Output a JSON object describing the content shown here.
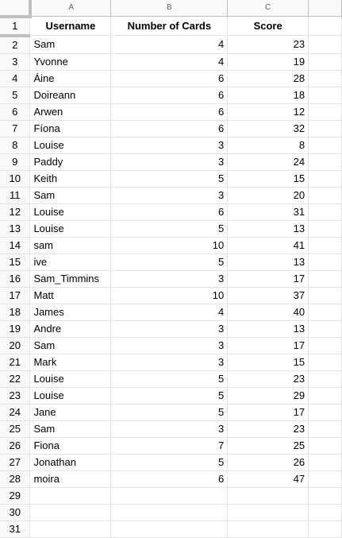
{
  "columns": [
    "A",
    "B",
    "C",
    ""
  ],
  "headers": [
    "Username",
    "Number of Cards",
    "Score"
  ],
  "rows": [
    [
      "Sam",
      "4",
      "23"
    ],
    [
      "Yvonne",
      "4",
      "19"
    ],
    [
      "Áine",
      "6",
      "28"
    ],
    [
      "Doireann",
      "6",
      "18"
    ],
    [
      "Arwen",
      "6",
      "12"
    ],
    [
      "Fíona",
      "6",
      "32"
    ],
    [
      "Louise",
      "3",
      "8"
    ],
    [
      "Paddy",
      "3",
      "24"
    ],
    [
      "Keith",
      "5",
      "15"
    ],
    [
      "Sam",
      "3",
      "20"
    ],
    [
      "Louise",
      "6",
      "31"
    ],
    [
      "Louise",
      "5",
      "13"
    ],
    [
      "sam",
      "10",
      "41"
    ],
    [
      "ive",
      "5",
      "13"
    ],
    [
      "Sam_Timmins",
      "3",
      "17"
    ],
    [
      "Matt",
      "10",
      "37"
    ],
    [
      "James",
      "4",
      "40"
    ],
    [
      "Andre",
      "3",
      "13"
    ],
    [
      "Sam",
      "3",
      "17"
    ],
    [
      "Mark",
      "3",
      "15"
    ],
    [
      "Louise",
      "5",
      "23"
    ],
    [
      "Louise",
      "5",
      "29"
    ],
    [
      "Jane",
      "5",
      "17"
    ],
    [
      "Sam",
      "3",
      "23"
    ],
    [
      "Fiona",
      "7",
      "25"
    ],
    [
      "Jonathan",
      "5",
      "26"
    ],
    [
      "moira",
      "6",
      "47"
    ]
  ],
  "row_numbers": [
    "1",
    "2",
    "3",
    "4",
    "5",
    "6",
    "7",
    "8",
    "9",
    "10",
    "11",
    "12",
    "13",
    "14",
    "15",
    "16",
    "17",
    "18",
    "19",
    "20",
    "21",
    "22",
    "23",
    "24",
    "25",
    "26",
    "27",
    "28",
    "29",
    "30",
    "31"
  ]
}
